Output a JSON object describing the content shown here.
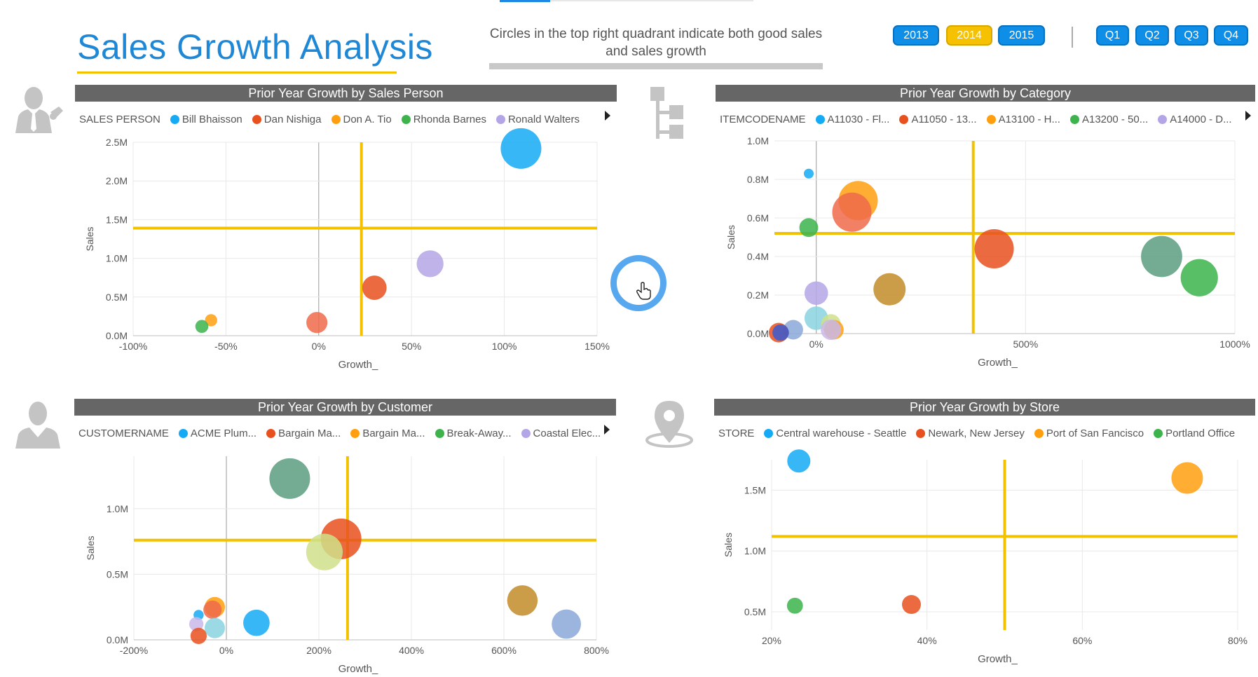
{
  "page": {
    "title": "Sales Growth Analysis",
    "subtitle": "Circles in the top right quadrant indicate both good sales and sales growth",
    "accent_color": "#1e88d6",
    "highlight_color": "#f2c200"
  },
  "slicers": {
    "years": [
      {
        "label": "2013",
        "selected": false
      },
      {
        "label": "2014",
        "selected": true
      },
      {
        "label": "2015",
        "selected": false
      }
    ],
    "quarters": [
      {
        "label": "Q1"
      },
      {
        "label": "Q2"
      },
      {
        "label": "Q3"
      },
      {
        "label": "Q4"
      }
    ]
  },
  "icons": [
    "salesperson-icon",
    "hierarchy-icon",
    "customer-icon",
    "location-pin-icon",
    "hand-cursor-icon"
  ],
  "charts": {
    "salesperson": {
      "title": "Prior Year Growth by Sales Person",
      "legend_title": "SALES PERSON",
      "legend": [
        {
          "name": "Bill Bhaisson",
          "color": "#14aaf5"
        },
        {
          "name": "Dan Nishiga",
          "color": "#e8501e"
        },
        {
          "name": "Don A. Tio",
          "color": "#ff9f0f"
        },
        {
          "name": "Rhonda Barnes",
          "color": "#3cb44b"
        },
        {
          "name": "Ronald Walters",
          "color": "#b4a6e6"
        }
      ]
    },
    "category": {
      "title": "Prior Year Growth by Category",
      "legend_title": "ITEMCODENAME",
      "legend": [
        {
          "name": "A11030 - Fl...",
          "color": "#14aaf5"
        },
        {
          "name": "A11050 - 13...",
          "color": "#e8501e"
        },
        {
          "name": "A13100 - H...",
          "color": "#ff9f0f"
        },
        {
          "name": "A13200 - 50...",
          "color": "#3cb44b"
        },
        {
          "name": "A14000 - D...",
          "color": "#b4a6e6"
        }
      ]
    },
    "customer": {
      "title": "Prior Year Growth by Customer",
      "legend_title": "CUSTOMERNAME",
      "legend": [
        {
          "name": "ACME Plum...",
          "color": "#14aaf5"
        },
        {
          "name": "Bargain Ma...",
          "color": "#e8501e"
        },
        {
          "name": "Bargain Ma...",
          "color": "#ff9f0f"
        },
        {
          "name": "Break-Away...",
          "color": "#3cb44b"
        },
        {
          "name": "Coastal Elec...",
          "color": "#b4a6e6"
        }
      ]
    },
    "store": {
      "title": "Prior Year Growth by Store",
      "legend_title": "STORE",
      "legend": [
        {
          "name": "Central warehouse - Seattle",
          "color": "#14aaf5"
        },
        {
          "name": "Newark, New Jersey",
          "color": "#e8501e"
        },
        {
          "name": "Port of San Fancisco",
          "color": "#ff9f0f"
        },
        {
          "name": "Portland Office",
          "color": "#3cb44b"
        }
      ]
    }
  },
  "chart_data": [
    {
      "id": "salesperson",
      "type": "scatter",
      "title": "Prior Year Growth by Sales Person",
      "xlabel": "Growth_",
      "ylabel": "Sales",
      "xlim": [
        -100,
        150
      ],
      "ylim": [
        0,
        2.5
      ],
      "xticks": [
        -100,
        -50,
        0,
        50,
        100,
        150
      ],
      "xtick_labels": [
        "-100%",
        "-50%",
        "0%",
        "50%",
        "100%",
        "150%"
      ],
      "yticks": [
        0,
        0.5,
        1.0,
        1.5,
        2.0,
        2.5
      ],
      "ytick_labels": [
        "0.0M",
        "0.5M",
        "1.0M",
        "1.5M",
        "2.0M",
        "2.5M"
      ],
      "reference_lines": {
        "x": 23,
        "y": 1.39,
        "color": "#f2c200"
      },
      "points": [
        {
          "x": 109,
          "y": 2.42,
          "size": 1.0,
          "color": "#14aaf5"
        },
        {
          "x": 60,
          "y": 0.93,
          "size": 0.66,
          "color": "#b4a6e6"
        },
        {
          "x": 30,
          "y": 0.62,
          "size": 0.6,
          "color": "#e8501e"
        },
        {
          "x": -1,
          "y": 0.17,
          "size": 0.52,
          "color": "#ee6a4a"
        },
        {
          "x": -58,
          "y": 0.2,
          "size": 0.3,
          "color": "#ff9f0f"
        },
        {
          "x": -63,
          "y": 0.12,
          "size": 0.32,
          "color": "#3cb44b"
        }
      ]
    },
    {
      "id": "category",
      "type": "scatter",
      "title": "Prior Year Growth by Category",
      "xlabel": "Growth_",
      "ylabel": "Sales",
      "xlim": [
        -100,
        1000
      ],
      "ylim": [
        0,
        1.0
      ],
      "xticks": [
        0,
        500,
        1000
      ],
      "xtick_labels": [
        "0%",
        "500%",
        "1000%"
      ],
      "yticks": [
        0,
        0.2,
        0.4,
        0.6,
        0.8,
        1.0
      ],
      "ytick_labels": [
        "0.0M",
        "0.2M",
        "0.4M",
        "0.6M",
        "0.8M",
        "1.0M"
      ],
      "reference_lines": {
        "x": 375,
        "y": 0.52,
        "color": "#f2c200"
      },
      "points": [
        {
          "x": -18,
          "y": 0.83,
          "size": 0.25,
          "color": "#14aaf5"
        },
        {
          "x": 100,
          "y": 0.69,
          "size": 1.0,
          "color": "#ff9f0f"
        },
        {
          "x": 85,
          "y": 0.63,
          "size": 1.0,
          "color": "#ee6a4a"
        },
        {
          "x": -18,
          "y": 0.55,
          "size": 0.48,
          "color": "#3cb44b"
        },
        {
          "x": 425,
          "y": 0.44,
          "size": 1.0,
          "color": "#e8501e"
        },
        {
          "x": 825,
          "y": 0.4,
          "size": 1.05,
          "color": "#5a9e80"
        },
        {
          "x": 915,
          "y": 0.29,
          "size": 0.95,
          "color": "#3cb44b"
        },
        {
          "x": 175,
          "y": 0.23,
          "size": 0.82,
          "color": "#c28c28"
        },
        {
          "x": 0,
          "y": 0.21,
          "size": 0.6,
          "color": "#b4a6e6"
        },
        {
          "x": 0,
          "y": 0.08,
          "size": 0.6,
          "color": "#8ad2e0"
        },
        {
          "x": 35,
          "y": 0.05,
          "size": 0.5,
          "color": "#cfe08a"
        },
        {
          "x": 42,
          "y": 0.02,
          "size": 0.5,
          "color": "#ff9f0f"
        },
        {
          "x": 35,
          "y": 0.02,
          "size": 0.52,
          "color": "#c9b8ea"
        },
        {
          "x": -55,
          "y": 0.02,
          "size": 0.5,
          "color": "#8aa8d8"
        },
        {
          "x": -90,
          "y": 0.005,
          "size": 0.5,
          "color": "#e8501e"
        },
        {
          "x": -85,
          "y": 0.005,
          "size": 0.42,
          "color": "#3a5bd0"
        }
      ]
    },
    {
      "id": "customer",
      "type": "scatter",
      "title": "Prior Year Growth by Customer",
      "xlabel": "Growth_",
      "ylabel": "Sales",
      "xlim": [
        -200,
        800
      ],
      "ylim": [
        0,
        1.4
      ],
      "xticks": [
        -200,
        0,
        200,
        400,
        600,
        800
      ],
      "xtick_labels": [
        "-200%",
        "0%",
        "200%",
        "400%",
        "600%",
        "800%"
      ],
      "yticks": [
        0,
        0.5,
        1.0
      ],
      "ytick_labels": [
        "0.0M",
        "0.5M",
        "1.0M"
      ],
      "reference_lines": {
        "x": 262,
        "y": 0.76,
        "color": "#f2c200"
      },
      "points": [
        {
          "x": 137,
          "y": 1.23,
          "size": 1.0,
          "color": "#5a9e80"
        },
        {
          "x": 248,
          "y": 0.77,
          "size": 1.0,
          "color": "#e8501e"
        },
        {
          "x": 212,
          "y": 0.67,
          "size": 0.9,
          "color": "#cfe08a"
        },
        {
          "x": 640,
          "y": 0.3,
          "size": 0.75,
          "color": "#c28c28"
        },
        {
          "x": 735,
          "y": 0.12,
          "size": 0.72,
          "color": "#8aa8d8"
        },
        {
          "x": 65,
          "y": 0.13,
          "size": 0.65,
          "color": "#14aaf5"
        },
        {
          "x": -25,
          "y": 0.25,
          "size": 0.5,
          "color": "#ff9f0f"
        },
        {
          "x": -30,
          "y": 0.23,
          "size": 0.45,
          "color": "#ee6a4a"
        },
        {
          "x": -60,
          "y": 0.19,
          "size": 0.25,
          "color": "#14aaf5"
        },
        {
          "x": -25,
          "y": 0.09,
          "size": 0.5,
          "color": "#8ad2e0"
        },
        {
          "x": -65,
          "y": 0.12,
          "size": 0.35,
          "color": "#c9b8ea"
        },
        {
          "x": -60,
          "y": 0.03,
          "size": 0.4,
          "color": "#e8501e"
        }
      ]
    },
    {
      "id": "store",
      "type": "scatter",
      "title": "Prior Year Growth by Store",
      "xlabel": "Growth_",
      "ylabel": "Sales",
      "xlim": [
        20,
        80
      ],
      "ylim": [
        0.35,
        1.75
      ],
      "xticks": [
        20,
        40,
        60,
        80
      ],
      "xtick_labels": [
        "20%",
        "40%",
        "60%",
        "80%"
      ],
      "yticks": [
        0.5,
        1.0,
        1.5
      ],
      "ytick_labels": [
        "0.5M",
        "1.0M",
        "1.5M"
      ],
      "reference_lines": {
        "x": 50,
        "y": 1.12,
        "color": "#f2c200"
      },
      "points": [
        {
          "x": 23.5,
          "y": 1.74,
          "size": 0.55,
          "color": "#14aaf5"
        },
        {
          "x": 73.5,
          "y": 1.6,
          "size": 0.75,
          "color": "#ff9f0f"
        },
        {
          "x": 23,
          "y": 0.55,
          "size": 0.38,
          "color": "#3cb44b"
        },
        {
          "x": 38,
          "y": 0.56,
          "size": 0.45,
          "color": "#e8501e"
        }
      ]
    }
  ]
}
